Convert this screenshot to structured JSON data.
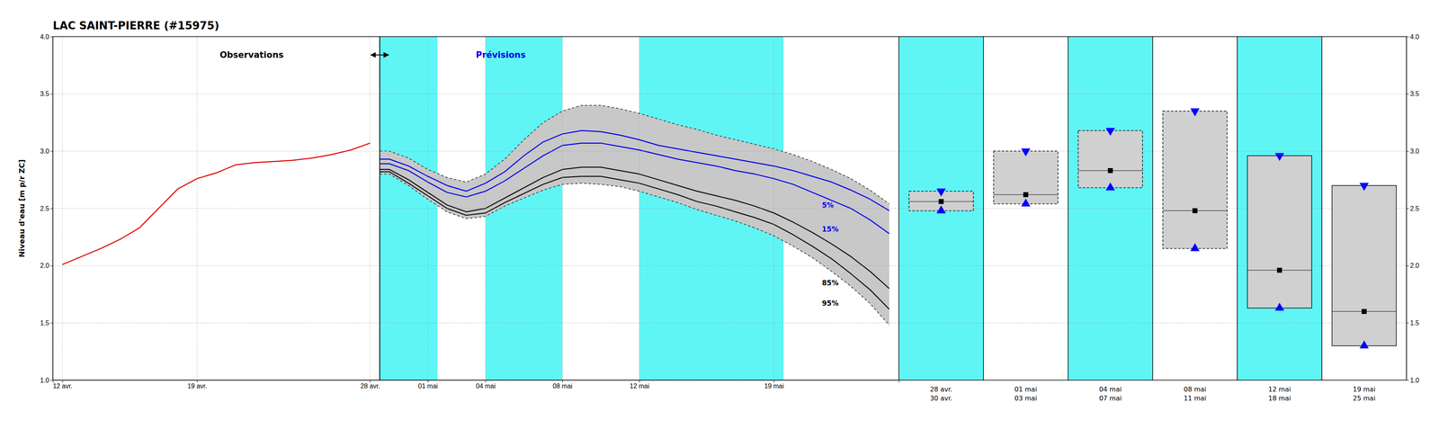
{
  "chart_data": [
    {
      "type": "line",
      "title": "LAC SAINT-PIERRE (#15975)",
      "y_label": "Niveau d'eau [m p/r ZC]",
      "xlim": [
        -0.5,
        43.5
      ],
      "xticks": [
        {
          "value": 0,
          "label": "12 avr."
        },
        {
          "value": 7,
          "label": "19 avr."
        },
        {
          "value": 16,
          "label": "28 avr."
        },
        {
          "value": 19,
          "label": "01 mai"
        },
        {
          "value": 22,
          "label": "04 mai"
        },
        {
          "value": 26,
          "label": "08 mai"
        },
        {
          "value": 30,
          "label": "12 mai"
        },
        {
          "value": 37,
          "label": "19 mai"
        }
      ],
      "ylim": [
        1.0,
        4.0
      ],
      "yticks": [
        {
          "value": 1.0,
          "label": "1.0"
        },
        {
          "value": 1.5,
          "label": "1.5"
        },
        {
          "value": 2.0,
          "label": "2.0"
        },
        {
          "value": 2.5,
          "label": "2.5"
        },
        {
          "value": 3.0,
          "label": "3.0"
        },
        {
          "value": 3.5,
          "label": "3.5"
        },
        {
          "value": 4.0,
          "label": "4.0"
        }
      ],
      "grid": true,
      "bands": {
        "ranges": [
          [
            16.5,
            19.5
          ],
          [
            22.0,
            26.0
          ],
          [
            30.0,
            37.5
          ]
        ],
        "color": "#5ff5f5"
      },
      "area": {
        "x": [
          16.5,
          17,
          18,
          19,
          20,
          21,
          22,
          23,
          24,
          25,
          26,
          27,
          28,
          29,
          30,
          31,
          32,
          33,
          34,
          35,
          36,
          37,
          38,
          39,
          40,
          41,
          42,
          43
        ],
        "upper": [
          3.0,
          3.0,
          2.94,
          2.84,
          2.77,
          2.73,
          2.8,
          2.93,
          3.1,
          3.25,
          3.35,
          3.4,
          3.4,
          3.37,
          3.33,
          3.28,
          3.23,
          3.19,
          3.14,
          3.1,
          3.06,
          3.02,
          2.97,
          2.91,
          2.84,
          2.76,
          2.66,
          2.54
        ],
        "lower": [
          2.8,
          2.8,
          2.7,
          2.58,
          2.47,
          2.41,
          2.43,
          2.52,
          2.59,
          2.66,
          2.71,
          2.72,
          2.71,
          2.69,
          2.65,
          2.6,
          2.55,
          2.49,
          2.44,
          2.39,
          2.33,
          2.26,
          2.17,
          2.07,
          1.95,
          1.82,
          1.67,
          1.48
        ],
        "color": "#c8c8c8",
        "line_style": "dashed"
      },
      "series": [
        {
          "x": [
            16.5,
            17,
            18,
            19,
            20,
            21,
            22,
            23,
            24,
            25,
            26,
            27,
            28,
            29,
            30,
            31,
            32,
            33,
            34,
            35,
            36,
            37,
            38,
            39,
            40,
            41,
            42,
            43
          ],
          "values": [
            2.82,
            2.82,
            2.72,
            2.61,
            2.5,
            2.44,
            2.46,
            2.55,
            2.63,
            2.71,
            2.77,
            2.78,
            2.78,
            2.75,
            2.72,
            2.67,
            2.62,
            2.56,
            2.52,
            2.47,
            2.42,
            2.36,
            2.27,
            2.17,
            2.06,
            1.93,
            1.79,
            1.62
          ],
          "color": "#111111"
        },
        {
          "x": [
            16.5,
            17,
            18,
            19,
            20,
            21,
            22,
            23,
            24,
            25,
            26,
            27,
            28,
            29,
            30,
            31,
            32,
            33,
            34,
            35,
            36,
            37,
            38,
            39,
            40,
            41,
            42,
            43
          ],
          "values": [
            2.84,
            2.84,
            2.75,
            2.64,
            2.53,
            2.47,
            2.5,
            2.59,
            2.68,
            2.77,
            2.84,
            2.86,
            2.86,
            2.83,
            2.8,
            2.75,
            2.7,
            2.65,
            2.61,
            2.57,
            2.52,
            2.46,
            2.38,
            2.29,
            2.19,
            2.08,
            1.95,
            1.8
          ],
          "color": "#111111"
        },
        {
          "x": [
            16.5,
            17,
            18,
            19,
            20,
            21,
            22,
            23,
            24,
            25,
            26,
            27,
            28,
            29,
            30,
            31,
            32,
            33,
            34,
            35,
            36,
            37,
            38,
            39,
            40,
            41,
            42,
            43
          ],
          "values": [
            2.93,
            2.93,
            2.87,
            2.78,
            2.7,
            2.65,
            2.72,
            2.82,
            2.96,
            3.08,
            3.15,
            3.18,
            3.17,
            3.14,
            3.1,
            3.05,
            3.02,
            2.99,
            2.96,
            2.93,
            2.9,
            2.87,
            2.83,
            2.78,
            2.73,
            2.66,
            2.58,
            2.48
          ],
          "color": "#0000ee"
        },
        {
          "x": [
            16.5,
            17,
            18,
            19,
            20,
            21,
            22,
            23,
            24,
            25,
            26,
            27,
            28,
            29,
            30,
            31,
            32,
            33,
            34,
            35,
            36,
            37,
            38,
            39,
            40,
            41,
            42,
            43
          ],
          "values": [
            2.89,
            2.89,
            2.83,
            2.73,
            2.64,
            2.6,
            2.65,
            2.74,
            2.85,
            2.96,
            3.05,
            3.07,
            3.07,
            3.04,
            3.01,
            2.97,
            2.93,
            2.9,
            2.87,
            2.83,
            2.8,
            2.76,
            2.71,
            2.64,
            2.57,
            2.5,
            2.4,
            2.28
          ],
          "color": "#0000ee"
        },
        {
          "x": [
            0,
            1,
            2,
            3,
            4,
            5,
            6,
            7,
            8,
            9,
            10,
            11,
            12,
            13,
            14,
            15,
            16
          ],
          "values": [
            2.01,
            2.08,
            2.15,
            2.23,
            2.33,
            2.5,
            2.67,
            2.76,
            2.81,
            2.88,
            2.9,
            2.91,
            2.92,
            2.94,
            2.97,
            3.01,
            3.07
          ],
          "color": "#dd0000"
        }
      ],
      "forecast_start": 16.5,
      "annotations": [
        {
          "text": "Observations",
          "x": 11.5,
          "y": 3.84,
          "color": "#000000"
        },
        {
          "text": "Prévisions",
          "x": 21.5,
          "y": 3.84,
          "color": "#0000ee"
        },
        {
          "text": "5%",
          "x": 39.5,
          "y": 2.53,
          "color": "#0000ee"
        },
        {
          "text": "15%",
          "x": 39.5,
          "y": 2.32,
          "color": "#0000ee"
        },
        {
          "text": "85%",
          "x": 39.5,
          "y": 1.85,
          "color": "#000000"
        },
        {
          "text": "95%",
          "x": 39.5,
          "y": 1.67,
          "color": "#000000"
        }
      ]
    },
    {
      "type": "box",
      "categories": [
        "28 avr.",
        "01 mai",
        "04 mai",
        "08 mai",
        "12 mai",
        "19 mai"
      ],
      "categories_end": [
        "30 avr.",
        "03 mai",
        "07 mai",
        "11 mai",
        "18 mai",
        "25 mai"
      ],
      "upper": [
        2.65,
        3.0,
        3.18,
        3.35,
        2.96,
        2.7
      ],
      "median": [
        2.56,
        2.62,
        2.83,
        2.48,
        1.96,
        1.6
      ],
      "lower": [
        2.48,
        2.54,
        2.68,
        2.15,
        1.63,
        1.3
      ],
      "shaded": [
        true,
        false,
        true,
        false,
        true,
        false
      ],
      "line_styles": [
        "dashed",
        "dashed",
        "dashed",
        "dashed",
        "solid",
        "solid"
      ],
      "color": "#0000ff",
      "ylim": [
        1.0,
        4.0
      ],
      "yticks": [
        {
          "value": 1.0,
          "label": "1.0"
        },
        {
          "value": 1.5,
          "label": "1.5"
        },
        {
          "value": 2.0,
          "label": "2.0"
        },
        {
          "value": 2.5,
          "label": "2.5"
        },
        {
          "value": 3.0,
          "label": "3.0"
        },
        {
          "value": 3.5,
          "label": "3.5"
        },
        {
          "value": 4.0,
          "label": "4.0"
        }
      ],
      "grid": true
    }
  ]
}
